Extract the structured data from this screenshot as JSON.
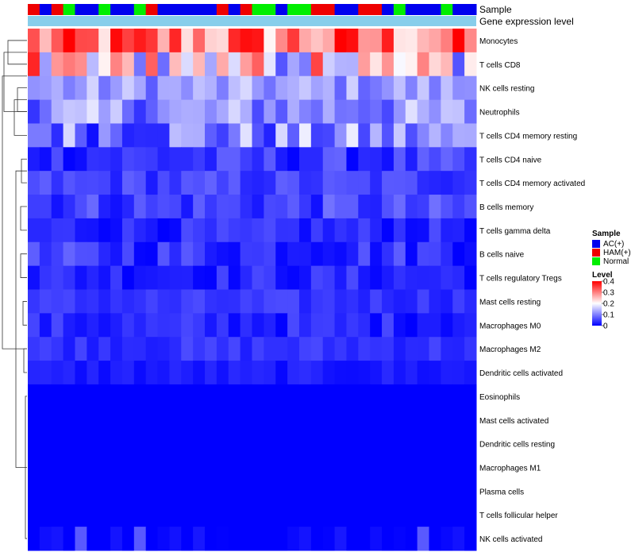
{
  "chart_data": {
    "type": "heatmap",
    "title": "",
    "annotations": [
      {
        "name": "Sample",
        "label": "Sample"
      },
      {
        "name": "Gene expression level",
        "label": "Gene expression level"
      }
    ],
    "sample_groups": [
      "HAM(+)",
      "AC(+)",
      "HAM(+)",
      "Normal",
      "AC(+)",
      "AC(+)",
      "Normal",
      "AC(+)",
      "AC(+)",
      "Normal",
      "HAM(+)",
      "AC(+)",
      "AC(+)",
      "AC(+)",
      "AC(+)",
      "AC(+)",
      "HAM(+)",
      "AC(+)",
      "HAM(+)",
      "Normal",
      "Normal",
      "AC(+)",
      "Normal",
      "Normal",
      "HAM(+)",
      "HAM(+)",
      "AC(+)",
      "AC(+)",
      "HAM(+)",
      "HAM(+)",
      "AC(+)",
      "Normal",
      "AC(+)",
      "AC(+)",
      "AC(+)",
      "Normal",
      "AC(+)",
      "AC(+)"
    ],
    "rows": [
      "Monocytes",
      "T cells CD8",
      "NK cells resting",
      "Neutrophils",
      "T cells CD4 memory resting",
      "T cells CD4 naive",
      "T cells CD4 memory activated",
      "B cells memory",
      "T cells gamma delta",
      "B cells naive",
      "T cells regulatory  Tregs",
      "Mast cells resting",
      "Macrophages M0",
      "Macrophages M2",
      "Dendritic cells activated",
      "Eosinophils",
      "Mast cells activated",
      "Dendritic cells resting",
      "Macrophages M1",
      "Plasma cells",
      "T cells follicular helper",
      "NK cells activated"
    ],
    "row_base_values": [
      0.3,
      0.2,
      0.12,
      0.11,
      0.1,
      0.04,
      0.05,
      0.05,
      0.03,
      0.04,
      0.03,
      0.04,
      0.03,
      0.04,
      0.02,
      0.0,
      0.0,
      0.0,
      0.0,
      0.0,
      0.0,
      0.0
    ],
    "row_spread": [
      0.12,
      0.14,
      0.05,
      0.07,
      0.09,
      0.04,
      0.03,
      0.04,
      0.03,
      0.04,
      0.03,
      0.02,
      0.03,
      0.02,
      0.015,
      0.0,
      0.0,
      0.0,
      0.0,
      0.0,
      0.0,
      0.02
    ],
    "value_range": [
      0,
      0.4
    ],
    "color_scale": {
      "low": "#0000FF",
      "mid": "#FFFFFF",
      "high": "#FF0000",
      "mid_value": 0.2
    },
    "annotation_colors": {
      "AC(+)": "#0000EE",
      "HAM(+)": "#EE0000",
      "Normal": "#00EE00",
      "Gene expression level": "#87CEEB"
    },
    "legend": {
      "sample_title": "Sample",
      "sample_items": [
        "AC(+)",
        "HAM(+)",
        "Normal"
      ],
      "level_title": "Level",
      "level_ticks": [
        "0.4",
        "0.3",
        "0.2",
        "0.1",
        "0"
      ],
      "level_values": [
        0.4,
        0.3,
        0.2,
        0.1,
        0
      ]
    }
  }
}
